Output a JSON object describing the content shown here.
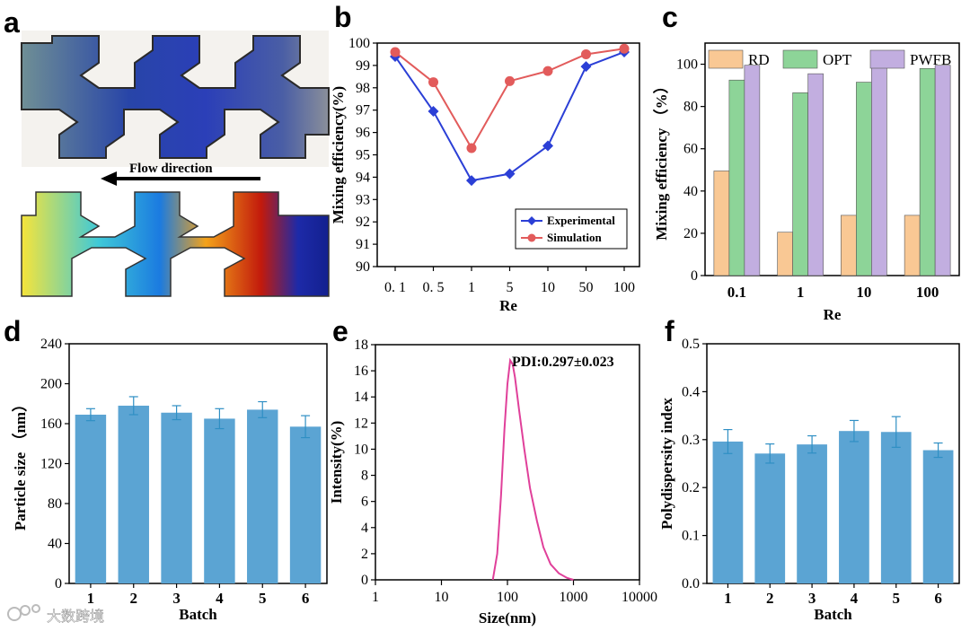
{
  "panels": {
    "a": {
      "letter": "a",
      "flow_label": "Flow direction"
    }
  },
  "watermark": "大数跨境",
  "chart_data": [
    {
      "id": "b",
      "letter": "b",
      "type": "line",
      "categories": [
        "0. 1",
        "0. 5",
        "1",
        "5",
        "10",
        "50",
        "100"
      ],
      "series": [
        {
          "name": "Experimental",
          "color": "#2b3fd6",
          "marker": "diamond",
          "values": [
            99.4,
            96.95,
            93.85,
            94.15,
            95.4,
            98.95,
            99.6
          ]
        },
        {
          "name": "Simulation",
          "color": "#e25b5b",
          "marker": "circle",
          "values": [
            99.6,
            98.25,
            95.3,
            98.3,
            98.75,
            99.5,
            99.75
          ]
        }
      ],
      "xlabel": "Re",
      "ylabel": "Mixing efficiency(%)",
      "ylim": [
        90,
        100
      ],
      "yticks": [
        "90",
        "91",
        "92",
        "93",
        "94",
        "95",
        "96",
        "97",
        "98",
        "99",
        "100"
      ],
      "legend": "bottom-right"
    },
    {
      "id": "c",
      "letter": "c",
      "type": "bar",
      "categories": [
        "0.1",
        "1",
        "10",
        "100"
      ],
      "series": [
        {
          "name": "RD",
          "color": "#f9c894",
          "values": [
            49.5,
            20.5,
            28.5,
            28.5
          ]
        },
        {
          "name": "OPT",
          "color": "#8dd498",
          "values": [
            92.5,
            86.5,
            91.5,
            98
          ]
        },
        {
          "name": "PWFB",
          "color": "#c2aee0",
          "values": [
            99.5,
            95.5,
            98.5,
            99.5
          ]
        }
      ],
      "xlabel": "Re",
      "ylabel": "Mixing efficiency （%）",
      "ylim": [
        0,
        110
      ],
      "yticks": [
        "0",
        "20",
        "40",
        "60",
        "80",
        "100"
      ],
      "legend": "top"
    },
    {
      "id": "d",
      "letter": "d",
      "type": "bar",
      "categories": [
        "1",
        "2",
        "3",
        "4",
        "5",
        "6"
      ],
      "color": "#5ba4d3",
      "values": [
        169,
        178,
        171,
        165,
        174,
        157
      ],
      "errors": [
        6,
        9,
        7,
        10,
        8,
        11
      ],
      "xlabel": "Batch",
      "ylabel": "Particle size （nm）",
      "ylim": [
        0,
        240
      ],
      "yticks": [
        "0",
        "40",
        "80",
        "120",
        "160",
        "200",
        "240"
      ]
    },
    {
      "id": "e",
      "letter": "e",
      "type": "line",
      "scale": "log",
      "color": "#e0409a",
      "x": [
        60,
        70,
        80,
        90,
        100,
        110,
        120,
        130,
        150,
        180,
        220,
        280,
        350,
        450,
        600,
        800,
        1000
      ],
      "y": [
        0,
        2,
        6.5,
        11.5,
        15,
        16.8,
        16.5,
        15.5,
        13,
        10,
        7,
        4.5,
        2.5,
        1.2,
        0.5,
        0.15,
        0
      ],
      "xlabel": "Size(nm)",
      "ylabel": "Intensity(%)",
      "xlim": [
        1,
        10000
      ],
      "xticks": [
        "1",
        "10",
        "100",
        "1000",
        "10000"
      ],
      "ylim": [
        0,
        18
      ],
      "yticks": [
        "0",
        "2",
        "4",
        "6",
        "8",
        "10",
        "12",
        "14",
        "16",
        "18"
      ],
      "annotation": "PDI:0.297±0.023"
    },
    {
      "id": "f",
      "letter": "f",
      "type": "bar",
      "categories": [
        "1",
        "2",
        "3",
        "4",
        "5",
        "6"
      ],
      "color": "#5ba4d3",
      "values": [
        0.296,
        0.271,
        0.29,
        0.318,
        0.316,
        0.278
      ],
      "errors": [
        0.025,
        0.02,
        0.018,
        0.022,
        0.032,
        0.015
      ],
      "xlabel": "Batch",
      "ylabel": "Polydispersity index",
      "ylim": [
        0,
        0.5
      ],
      "yticks": [
        "0.0",
        "0.1",
        "0.2",
        "0.3",
        "0.4",
        "0.5"
      ]
    }
  ]
}
